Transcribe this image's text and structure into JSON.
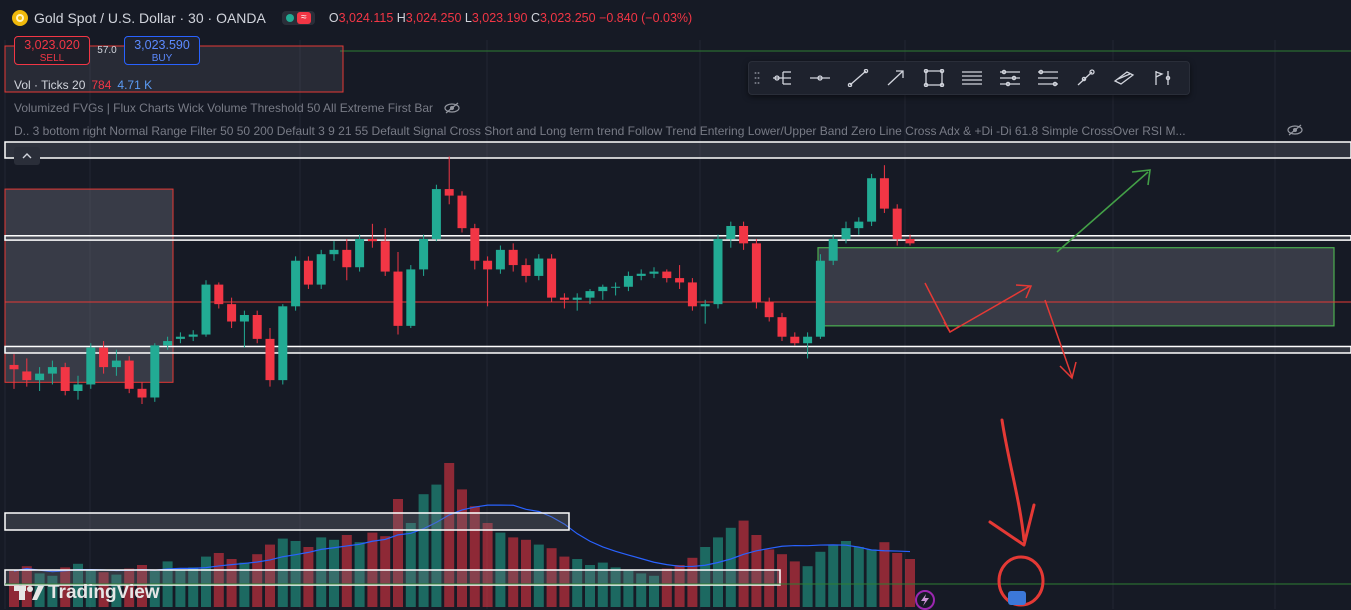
{
  "header": {
    "symbol_title": "Gold Spot / U.S. Dollar · 30 · OANDA",
    "market_icon": "gold-coin-icon",
    "status_icon": "replay-wave-icon",
    "ohlc": {
      "o_label": "O",
      "o_value": "3,024.115",
      "h_label": "H",
      "h_value": "3,024.250",
      "l_label": "L",
      "l_value": "3,023.190",
      "c_label": "C",
      "c_value": "3,023.250",
      "change": "−0.840 (−0.03%)"
    }
  },
  "trade": {
    "sell_price": "3,023.020",
    "sell_label": "SELL",
    "spread": "57.0",
    "buy_price": "3,023.590",
    "buy_label": "BUY"
  },
  "volume_legend": {
    "label": "Vol · Ticks 20",
    "value1": "784",
    "value2": "4.71 K"
  },
  "indicators": {
    "line1": "Volumized FVGs | Flux Charts Wick Volume Threshold 50 All Extreme First Bar",
    "line2": "D.. 3 bottom right Normal Range Filter 50 50 200 Default 3 9 21 55 Default Signal Cross Short and Long term trend Follow Trend Entering Lower/Upper Band Zero Line Cross Adx & +Di -Di 61.8 Simple CrossOver RSI M...",
    "hidden_icon": "eye-off-icon"
  },
  "toolbar": {
    "tools": [
      "fork-icon",
      "horizontal-ray-icon",
      "trend-line-icon",
      "arrow-icon",
      "rectangle-icon",
      "text-lines-icon",
      "channel-icon",
      "fib-icon",
      "brush-icon",
      "path-icon",
      "flag-pole-icon"
    ]
  },
  "branding": {
    "logo": "TradingView"
  },
  "colors": {
    "background": "#161a25",
    "up": "#22ab94",
    "down": "#f23645",
    "grid": "#232632",
    "annotation": "#e53935"
  },
  "chart_data": {
    "type": "candlestick",
    "ylim": [
      3012.0,
      3027.2
    ],
    "candles": [
      {
        "o": 3017.3,
        "h": 3017.8,
        "l": 3016.2,
        "c": 3017.1
      },
      {
        "o": 3017.0,
        "h": 3017.6,
        "l": 3016.3,
        "c": 3016.6
      },
      {
        "o": 3016.6,
        "h": 3017.2,
        "l": 3016.1,
        "c": 3016.9
      },
      {
        "o": 3016.9,
        "h": 3017.5,
        "l": 3016.4,
        "c": 3017.2
      },
      {
        "o": 3017.2,
        "h": 3017.4,
        "l": 3015.9,
        "c": 3016.1
      },
      {
        "o": 3016.1,
        "h": 3016.8,
        "l": 3015.7,
        "c": 3016.4
      },
      {
        "o": 3016.4,
        "h": 3018.3,
        "l": 3016.2,
        "c": 3018.1
      },
      {
        "o": 3018.1,
        "h": 3018.4,
        "l": 3016.9,
        "c": 3017.2
      },
      {
        "o": 3017.2,
        "h": 3018.0,
        "l": 3016.8,
        "c": 3017.5
      },
      {
        "o": 3017.5,
        "h": 3017.7,
        "l": 3016.0,
        "c": 3016.2
      },
      {
        "o": 3016.2,
        "h": 3016.5,
        "l": 3015.5,
        "c": 3015.8
      },
      {
        "o": 3015.8,
        "h": 3018.3,
        "l": 3015.6,
        "c": 3018.2
      },
      {
        "o": 3018.2,
        "h": 3018.6,
        "l": 3018.0,
        "c": 3018.4
      },
      {
        "o": 3018.5,
        "h": 3018.8,
        "l": 3018.3,
        "c": 3018.6
      },
      {
        "o": 3018.6,
        "h": 3018.9,
        "l": 3018.4,
        "c": 3018.7
      },
      {
        "o": 3018.7,
        "h": 3021.2,
        "l": 3018.6,
        "c": 3021.0
      },
      {
        "o": 3021.0,
        "h": 3021.1,
        "l": 3019.9,
        "c": 3020.1
      },
      {
        "o": 3020.1,
        "h": 3020.4,
        "l": 3019.0,
        "c": 3019.3
      },
      {
        "o": 3019.3,
        "h": 3019.8,
        "l": 3018.1,
        "c": 3019.6
      },
      {
        "o": 3019.6,
        "h": 3019.8,
        "l": 3018.3,
        "c": 3018.5
      },
      {
        "o": 3018.5,
        "h": 3019.0,
        "l": 3016.3,
        "c": 3016.6
      },
      {
        "o": 3016.6,
        "h": 3020.1,
        "l": 3016.4,
        "c": 3020.0
      },
      {
        "o": 3020.0,
        "h": 3022.3,
        "l": 3019.8,
        "c": 3022.1
      },
      {
        "o": 3022.1,
        "h": 3022.3,
        "l": 3020.8,
        "c": 3021.0
      },
      {
        "o": 3021.0,
        "h": 3022.6,
        "l": 3020.8,
        "c": 3022.4
      },
      {
        "o": 3022.4,
        "h": 3023.0,
        "l": 3022.1,
        "c": 3022.6
      },
      {
        "o": 3022.6,
        "h": 3023.1,
        "l": 3021.2,
        "c": 3021.8
      },
      {
        "o": 3021.8,
        "h": 3023.3,
        "l": 3021.6,
        "c": 3023.1
      },
      {
        "o": 3023.1,
        "h": 3023.8,
        "l": 3022.7,
        "c": 3023.0
      },
      {
        "o": 3023.0,
        "h": 3023.6,
        "l": 3021.4,
        "c": 3021.6
      },
      {
        "o": 3021.6,
        "h": 3022.5,
        "l": 3018.7,
        "c": 3019.1
      },
      {
        "o": 3019.1,
        "h": 3021.9,
        "l": 3019.0,
        "c": 3021.7
      },
      {
        "o": 3021.7,
        "h": 3023.3,
        "l": 3021.4,
        "c": 3023.1
      },
      {
        "o": 3023.1,
        "h": 3025.6,
        "l": 3023.0,
        "c": 3025.4
      },
      {
        "o": 3025.4,
        "h": 3026.9,
        "l": 3024.7,
        "c": 3025.1
      },
      {
        "o": 3025.1,
        "h": 3025.3,
        "l": 3023.4,
        "c": 3023.6
      },
      {
        "o": 3023.6,
        "h": 3023.8,
        "l": 3021.7,
        "c": 3022.1
      },
      {
        "o": 3022.1,
        "h": 3022.3,
        "l": 3020.0,
        "c": 3021.7
      },
      {
        "o": 3021.7,
        "h": 3022.8,
        "l": 3021.5,
        "c": 3022.6
      },
      {
        "o": 3022.6,
        "h": 3022.9,
        "l": 3021.6,
        "c": 3021.9
      },
      {
        "o": 3021.9,
        "h": 3022.2,
        "l": 3021.1,
        "c": 3021.4
      },
      {
        "o": 3021.4,
        "h": 3022.4,
        "l": 3021.2,
        "c": 3022.2
      },
      {
        "o": 3022.2,
        "h": 3022.4,
        "l": 3020.2,
        "c": 3020.4
      },
      {
        "o": 3020.4,
        "h": 3020.6,
        "l": 3019.9,
        "c": 3020.3
      },
      {
        "o": 3020.3,
        "h": 3020.6,
        "l": 3019.8,
        "c": 3020.4
      },
      {
        "o": 3020.4,
        "h": 3020.8,
        "l": 3020.1,
        "c": 3020.7
      },
      {
        "o": 3020.7,
        "h": 3021.0,
        "l": 3020.3,
        "c": 3020.9
      },
      {
        "o": 3020.9,
        "h": 3021.1,
        "l": 3020.5,
        "c": 3020.9
      },
      {
        "o": 3020.9,
        "h": 3021.6,
        "l": 3020.7,
        "c": 3021.4
      },
      {
        "o": 3021.4,
        "h": 3021.7,
        "l": 3021.2,
        "c": 3021.5
      },
      {
        "o": 3021.5,
        "h": 3021.8,
        "l": 3021.3,
        "c": 3021.6
      },
      {
        "o": 3021.6,
        "h": 3021.7,
        "l": 3021.1,
        "c": 3021.3
      },
      {
        "o": 3021.3,
        "h": 3021.9,
        "l": 3020.8,
        "c": 3021.1
      },
      {
        "o": 3021.1,
        "h": 3021.3,
        "l": 3019.8,
        "c": 3020.0
      },
      {
        "o": 3020.0,
        "h": 3020.3,
        "l": 3019.2,
        "c": 3020.1
      },
      {
        "o": 3020.1,
        "h": 3023.3,
        "l": 3019.9,
        "c": 3023.1
      },
      {
        "o": 3023.1,
        "h": 3023.9,
        "l": 3022.7,
        "c": 3023.7
      },
      {
        "o": 3023.7,
        "h": 3023.9,
        "l": 3022.6,
        "c": 3022.9
      },
      {
        "o": 3022.9,
        "h": 3023.1,
        "l": 3019.9,
        "c": 3020.2
      },
      {
        "o": 3020.2,
        "h": 3020.4,
        "l": 3019.3,
        "c": 3019.5
      },
      {
        "o": 3019.5,
        "h": 3019.7,
        "l": 3018.4,
        "c": 3018.6
      },
      {
        "o": 3018.6,
        "h": 3018.8,
        "l": 3018.2,
        "c": 3018.3
      },
      {
        "o": 3018.3,
        "h": 3018.8,
        "l": 3017.6,
        "c": 3018.6
      },
      {
        "o": 3018.6,
        "h": 3022.4,
        "l": 3018.5,
        "c": 3022.1
      },
      {
        "o": 3022.1,
        "h": 3023.3,
        "l": 3021.9,
        "c": 3023.1
      },
      {
        "o": 3023.1,
        "h": 3023.9,
        "l": 3022.9,
        "c": 3023.6
      },
      {
        "o": 3023.6,
        "h": 3024.1,
        "l": 3023.3,
        "c": 3023.9
      },
      {
        "o": 3023.9,
        "h": 3026.1,
        "l": 3023.7,
        "c": 3025.9
      },
      {
        "o": 3025.9,
        "h": 3026.5,
        "l": 3024.3,
        "c": 3024.5
      },
      {
        "o": 3024.5,
        "h": 3024.7,
        "l": 3022.8,
        "c": 3023.1
      },
      {
        "o": 3023.1,
        "h": 3023.3,
        "l": 3022.8,
        "c": 3022.9
      }
    ],
    "volume": [
      30,
      34,
      28,
      26,
      33,
      36,
      31,
      29,
      27,
      32,
      35,
      30,
      38,
      31,
      33,
      42,
      45,
      40,
      37,
      44,
      52,
      57,
      55,
      50,
      58,
      56,
      60,
      54,
      62,
      59,
      90,
      70,
      94,
      102,
      120,
      98,
      84,
      70,
      62,
      58,
      56,
      52,
      49,
      42,
      40,
      35,
      37,
      33,
      31,
      28,
      26,
      32,
      35,
      41,
      50,
      58,
      66,
      72,
      60,
      48,
      44,
      38,
      34,
      46,
      52,
      55,
      50,
      48,
      54,
      45,
      40
    ],
    "volume_ma": "blue-line",
    "horizontal_levels": [
      3023.05,
      3023.25,
      3018.15,
      3017.85
    ],
    "mid_level": 3020.2,
    "zones": [
      {
        "name": "left-fvg",
        "y_top": 3025.4,
        "y_bottom": 3016.5
      },
      {
        "name": "right-demand",
        "y_top": 3022.7,
        "y_bottom": 3019.1
      }
    ]
  }
}
